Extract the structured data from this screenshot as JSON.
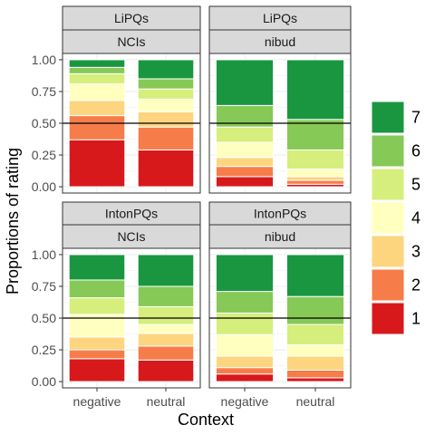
{
  "chart_data": {
    "type": "bar",
    "stacked": true,
    "xlabel": "Context",
    "ylabel": "Proportions of rating",
    "ylim": [
      0,
      1
    ],
    "yticks": [
      "0.00",
      "0.25",
      "0.50",
      "0.75",
      "1.00"
    ],
    "reference_line": 0.5,
    "categories": [
      "negative",
      "neutral"
    ],
    "legend": {
      "position": "right",
      "levels": [
        "7",
        "6",
        "5",
        "4",
        "3",
        "2",
        "1"
      ],
      "colors": {
        "1": "#d7191c",
        "2": "#f67d4a",
        "3": "#fdd57f",
        "4": "#ffffbf",
        "5": "#d6ee7c",
        "6": "#86c957",
        "7": "#1a9641"
      }
    },
    "panels": [
      {
        "strip_top": "LiPQs",
        "strip_bottom": "NCIs",
        "bars": [
          {
            "category": "negative",
            "proportions": {
              "1": 0.37,
              "2": 0.19,
              "3": 0.12,
              "4": 0.13,
              "5": 0.08,
              "6": 0.05,
              "7": 0.06
            }
          },
          {
            "category": "neutral",
            "proportions": {
              "1": 0.29,
              "2": 0.18,
              "3": 0.12,
              "4": 0.1,
              "5": 0.08,
              "6": 0.08,
              "7": 0.15
            }
          }
        ]
      },
      {
        "strip_top": "LiPQs",
        "strip_bottom": "nibud",
        "bars": [
          {
            "category": "negative",
            "proportions": {
              "1": 0.08,
              "2": 0.08,
              "3": 0.07,
              "4": 0.12,
              "5": 0.12,
              "6": 0.17,
              "7": 0.36
            }
          },
          {
            "category": "neutral",
            "proportions": {
              "1": 0.02,
              "2": 0.03,
              "3": 0.03,
              "4": 0.06,
              "5": 0.15,
              "6": 0.24,
              "7": 0.47
            }
          }
        ]
      },
      {
        "strip_top": "IntonPQs",
        "strip_bottom": "NCIs",
        "bars": [
          {
            "category": "negative",
            "proportions": {
              "1": 0.18,
              "2": 0.07,
              "3": 0.1,
              "4": 0.18,
              "5": 0.13,
              "6": 0.14,
              "7": 0.2
            }
          },
          {
            "category": "neutral",
            "proportions": {
              "1": 0.17,
              "2": 0.11,
              "3": 0.1,
              "4": 0.07,
              "5": 0.14,
              "6": 0.16,
              "7": 0.25
            }
          }
        ]
      },
      {
        "strip_top": "IntonPQs",
        "strip_bottom": "nibud",
        "bars": [
          {
            "category": "negative",
            "proportions": {
              "1": 0.06,
              "2": 0.05,
              "3": 0.09,
              "4": 0.17,
              "5": 0.17,
              "6": 0.17,
              "7": 0.29
            }
          },
          {
            "category": "neutral",
            "proportions": {
              "1": 0.03,
              "2": 0.06,
              "3": 0.11,
              "4": 0.09,
              "5": 0.16,
              "6": 0.22,
              "7": 0.33
            }
          }
        ]
      }
    ]
  }
}
